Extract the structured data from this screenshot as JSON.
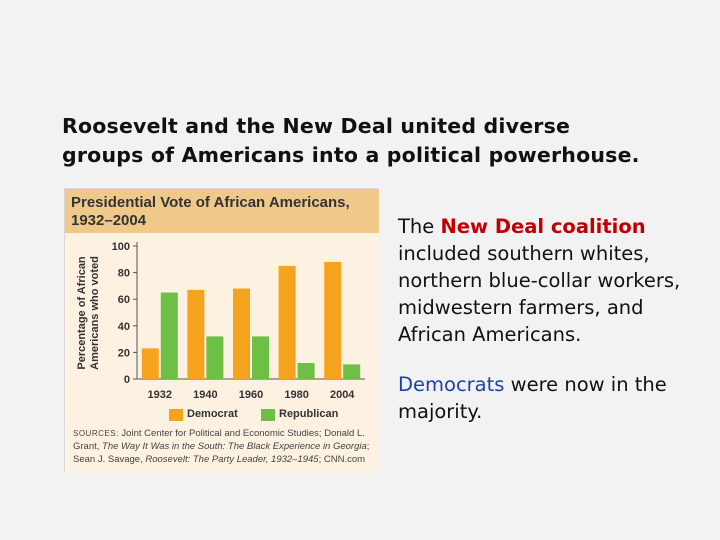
{
  "title": {
    "line1": "Roosevelt and the New Deal united diverse",
    "line2": "groups of Americans into a political powerhouse."
  },
  "body": {
    "p1_highlight": "New Deal coalition",
    "p1_prefix": "The ",
    "p1_rest": " included southern whites, northern blue-collar workers, midwestern farmers, and African Americans.",
    "p2_highlight": "Democrats",
    "p2_rest": " were now in the majority."
  },
  "sources": {
    "label": "SOURCES:",
    "text1": " Joint Center for Political and Economic Studies; Donald L. Grant, ",
    "book1": "The Way It Was in the South: The Black Experience in Georgia",
    "text2": "; Sean J. Savage, ",
    "book2": "Roosevelt: The Party Leader, 1932–1945",
    "text3": "; CNN.com"
  },
  "colors": {
    "democrat": "#f5a31d",
    "republican": "#6dbf45",
    "header_bg": "#f0c98a",
    "plot_bg": "#fdf1e1",
    "highlight_red": "#c00000",
    "highlight_blue": "#1f3fae"
  },
  "chart_data": {
    "type": "bar",
    "title_line1": "Presidential Vote of African Americans,",
    "title_line2": "1932–2004",
    "ylabel_line1": "Percentage of African",
    "ylabel_line2": "Americans who voted",
    "xlabel": "",
    "ylim": [
      0,
      100
    ],
    "yticks": [
      "0",
      "20",
      "40",
      "60",
      "80",
      "100"
    ],
    "categories": [
      "1932",
      "1940",
      "1960",
      "1980",
      "2004"
    ],
    "series": [
      {
        "name": "Democrat",
        "color": "#f5a31d",
        "values": [
          23,
          67,
          68,
          85,
          88
        ]
      },
      {
        "name": "Republican",
        "color": "#6dbf45",
        "values": [
          65,
          32,
          32,
          12,
          11
        ]
      }
    ],
    "legend": "bottom"
  }
}
